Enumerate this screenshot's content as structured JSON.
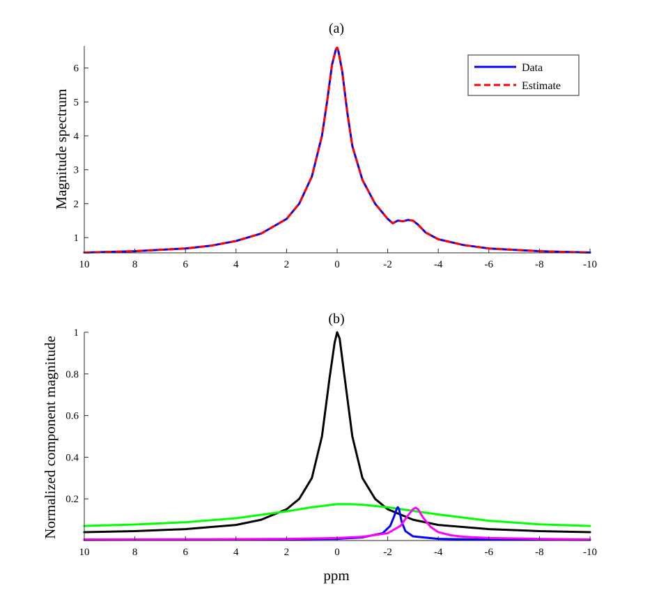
{
  "chart_data": [
    {
      "type": "line",
      "title": "(a)",
      "xlabel": "",
      "ylabel": "Magnitude spectrum",
      "xlim": [
        10,
        -10
      ],
      "ylim": [
        0.55,
        6.65
      ],
      "x_reversed": true,
      "xticks": [
        "10",
        "8",
        "6",
        "4",
        "2",
        "0",
        "-2",
        "-4",
        "-6",
        "-8",
        "-10"
      ],
      "yticks": [
        "1",
        "2",
        "3",
        "4",
        "5",
        "6"
      ],
      "legend": {
        "position": "top-right"
      },
      "series": [
        {
          "name": "Data",
          "color": "#0000ff",
          "style": "solid",
          "x": [
            10,
            8,
            6,
            5,
            4,
            3,
            2,
            1.5,
            1,
            0.6,
            0.4,
            0.2,
            0.05,
            0,
            -0.05,
            -0.2,
            -0.4,
            -0.6,
            -1,
            -1.5,
            -2,
            -2.2,
            -2.4,
            -2.6,
            -2.8,
            -3,
            -3.2,
            -3.5,
            -4,
            -5,
            -6,
            -8,
            -10
          ],
          "y": [
            0.56,
            0.6,
            0.68,
            0.76,
            0.9,
            1.12,
            1.55,
            2.0,
            2.8,
            4.0,
            5.0,
            6.1,
            6.55,
            6.6,
            6.5,
            5.9,
            4.7,
            3.7,
            2.7,
            2.0,
            1.55,
            1.42,
            1.5,
            1.48,
            1.52,
            1.5,
            1.38,
            1.15,
            0.95,
            0.78,
            0.68,
            0.6,
            0.56
          ]
        },
        {
          "name": "Estimate",
          "color": "#ff0000",
          "style": "dashed",
          "x": [
            10,
            8,
            6,
            5,
            4,
            3,
            2,
            1.5,
            1,
            0.6,
            0.4,
            0.2,
            0.05,
            0,
            -0.05,
            -0.2,
            -0.4,
            -0.6,
            -1,
            -1.5,
            -2,
            -2.2,
            -2.4,
            -2.6,
            -2.8,
            -3,
            -3.2,
            -3.5,
            -4,
            -5,
            -6,
            -8,
            -10
          ],
          "y": [
            0.56,
            0.6,
            0.68,
            0.76,
            0.9,
            1.12,
            1.55,
            2.0,
            2.8,
            4.0,
            5.0,
            6.1,
            6.55,
            6.6,
            6.5,
            5.9,
            4.7,
            3.7,
            2.7,
            2.0,
            1.55,
            1.42,
            1.5,
            1.48,
            1.52,
            1.5,
            1.38,
            1.15,
            0.95,
            0.78,
            0.68,
            0.6,
            0.56
          ]
        }
      ]
    },
    {
      "type": "line",
      "title": "(b)",
      "xlabel": "ppm",
      "ylabel": "Normalized component magnitude",
      "xlim": [
        10,
        -10
      ],
      "ylim": [
        0,
        1.0
      ],
      "x_reversed": true,
      "xticks": [
        "10",
        "8",
        "6",
        "4",
        "2",
        "0",
        "-2",
        "-4",
        "-6",
        "-8",
        "-10"
      ],
      "yticks": [
        "0.2",
        "0.4",
        "0.6",
        "0.8",
        "1"
      ],
      "series": [
        {
          "color": "#000000",
          "x": [
            10,
            8,
            6,
            4,
            3,
            2,
            1.5,
            1,
            0.6,
            0.3,
            0.1,
            0,
            -0.1,
            -0.3,
            -0.6,
            -1,
            -1.5,
            -2,
            -3,
            -4,
            -6,
            -8,
            -10
          ],
          "y": [
            0.04,
            0.045,
            0.055,
            0.075,
            0.1,
            0.15,
            0.2,
            0.3,
            0.5,
            0.78,
            0.95,
            1.0,
            0.97,
            0.78,
            0.5,
            0.3,
            0.2,
            0.15,
            0.1,
            0.075,
            0.055,
            0.045,
            0.04
          ]
        },
        {
          "color": "#00ff00",
          "x": [
            10,
            8,
            6,
            4,
            2,
            1,
            0,
            -0.5,
            -1,
            -2,
            -4,
            -6,
            -8,
            -10
          ],
          "y": [
            0.07,
            0.077,
            0.088,
            0.107,
            0.14,
            0.16,
            0.175,
            0.175,
            0.172,
            0.16,
            0.125,
            0.095,
            0.078,
            0.07
          ]
        },
        {
          "color": "#0000ff",
          "x": [
            10,
            5,
            0,
            -1,
            -1.8,
            -2.1,
            -2.25,
            -2.35,
            -2.4,
            -2.45,
            -2.55,
            -2.7,
            -3,
            -4,
            -6,
            -10
          ],
          "y": [
            0.003,
            0.004,
            0.008,
            0.015,
            0.035,
            0.07,
            0.115,
            0.15,
            0.16,
            0.15,
            0.09,
            0.045,
            0.02,
            0.008,
            0.004,
            0.003
          ]
        },
        {
          "color": "#ff00ff",
          "x": [
            10,
            5,
            2,
            0,
            -1,
            -2,
            -2.5,
            -2.8,
            -3,
            -3.1,
            -3.2,
            -3.4,
            -3.7,
            -4,
            -4.5,
            -5,
            -6,
            -8,
            -10
          ],
          "y": [
            0.005,
            0.006,
            0.008,
            0.012,
            0.018,
            0.035,
            0.07,
            0.12,
            0.15,
            0.158,
            0.15,
            0.11,
            0.065,
            0.04,
            0.025,
            0.018,
            0.012,
            0.008,
            0.005
          ]
        }
      ]
    }
  ]
}
